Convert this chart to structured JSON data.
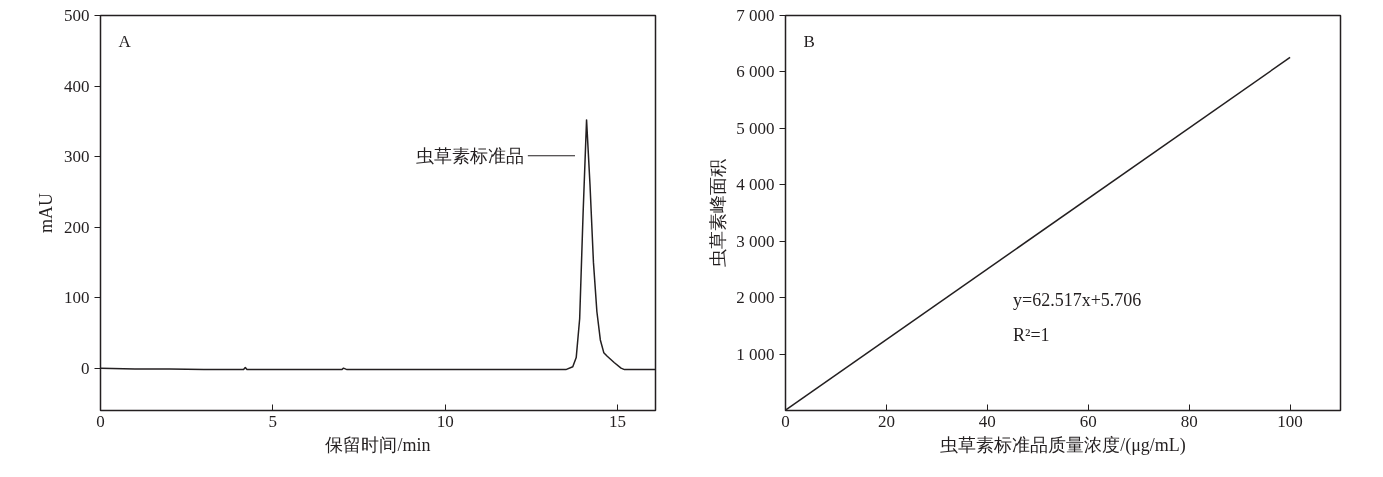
{
  "chart_data": [
    {
      "type": "line",
      "xlabel": "保留时间/min",
      "ylabel": "mAU",
      "xlim": [
        0,
        16.1
      ],
      "xticks": [
        0,
        5,
        10,
        15
      ],
      "ylim": [
        -60,
        500
      ],
      "yticks": [
        0,
        100,
        200,
        300,
        400,
        500
      ],
      "grid": false,
      "x": [
        0,
        1,
        2,
        3,
        4,
        4.15,
        4.2,
        4.25,
        5,
        6,
        7,
        7.05,
        7.15,
        8,
        10,
        12,
        13.5,
        13.7,
        13.8,
        13.9,
        14.0,
        14.1,
        14.2,
        14.3,
        14.4,
        14.5,
        14.6,
        14.7,
        14.9,
        15.1,
        15.2,
        16.1
      ],
      "series": [
        {
          "color": "#231f20",
          "values": [
            0,
            -1,
            -1,
            -2,
            -2,
            -2,
            1,
            -2,
            -2,
            -2,
            -2,
            0,
            -2,
            -2,
            -2,
            -2,
            -2,
            2,
            15,
            70,
            220,
            352,
            260,
            150,
            80,
            40,
            22,
            17,
            8,
            0,
            -2,
            -2
          ]
        }
      ],
      "annotations": [
        "A",
        "虫草素标准品"
      ]
    },
    {
      "type": "line",
      "xlabel": "虫草素标准品质量浓度/(μg/mL)",
      "ylabel": "虫草素峰面积",
      "xlim": [
        0,
        110
      ],
      "xticks": [
        0,
        20,
        40,
        60,
        80,
        100
      ],
      "ylim": [
        0,
        7000
      ],
      "yticks": [
        {
          "value": 1000,
          "label": "1 000"
        },
        {
          "value": 2000,
          "label": "2 000"
        },
        {
          "value": 3000,
          "label": "3 000"
        },
        {
          "value": 4000,
          "label": "4 000"
        },
        {
          "value": 5000,
          "label": "5 000"
        },
        {
          "value": 6000,
          "label": "6 000"
        },
        {
          "value": 7000,
          "label": "7 000"
        }
      ],
      "grid": false,
      "x": [
        0,
        100
      ],
      "series": [
        {
          "color": "#231f20",
          "values": [
            6,
            6257
          ]
        }
      ],
      "annotations": [
        "B",
        "y=62.517x+5.706",
        "R²=1"
      ]
    }
  ]
}
